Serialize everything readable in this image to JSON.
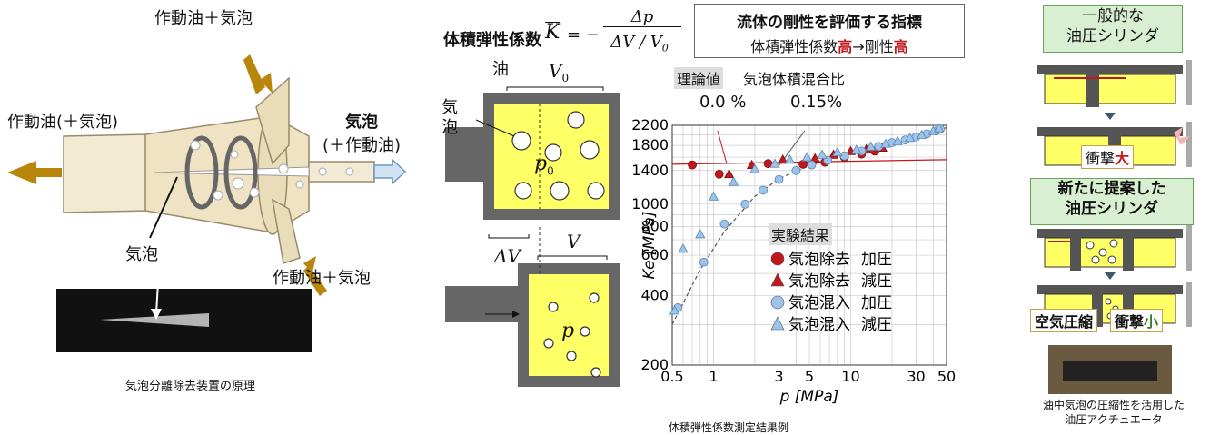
{
  "left": {
    "label_top": "作動油＋気泡",
    "label_left": "作動油(＋気泡)",
    "label_right_1": "気泡",
    "label_right_2": "(＋作動油)",
    "label_bubble": "気泡",
    "label_bottom": "作動油＋気泡",
    "caption": "気泡分離除去装置の原理"
  },
  "middle": {
    "formula_label": "体積弾性係数",
    "formula_lhs": "K",
    "formula_eq": "= −",
    "formula_num": "Δp",
    "formula_den": "ΔV / V",
    "formula_den_sub": "0",
    "callout_title": "流体の剛性を評価する指標",
    "callout_line_a": "体積弾性係数",
    "callout_high1": "高",
    "callout_arrow": "→剛性",
    "callout_high2": "高",
    "oil": "油",
    "bubble_a": "気",
    "bubble_b": "泡",
    "v0": "V",
    "v0_sub": "0",
    "p0": "p",
    "p0_sub": "0",
    "dv": "ΔV",
    "v": "V",
    "p": "p",
    "caption": "体積弾性係数測定結果例"
  },
  "chart_data": {
    "type": "scatter",
    "xlabel": "p [MPa]",
    "ylabel": "Ke [MPa]",
    "x_scale": "log",
    "y_scale": "log",
    "xlim": [
      0.5,
      50
    ],
    "ylim": [
      200,
      2200
    ],
    "x_ticks": [
      0.5,
      1,
      3,
      5,
      10,
      30,
      50
    ],
    "y_ticks": [
      200,
      400,
      600,
      800,
      1000,
      1400,
      1800,
      2200
    ],
    "grid": true,
    "theory_title": "理論値",
    "theory_sub": "気泡体積混合比",
    "theory_labels": [
      "0.0 %",
      "0.15%"
    ],
    "legend_title": "実験結果",
    "legend": [
      {
        "name": "気泡除去",
        "mode": "加圧",
        "marker": "circle",
        "color": "#c0181e"
      },
      {
        "name": "気泡除去",
        "mode": "減圧",
        "marker": "triangle",
        "color": "#c0181e"
      },
      {
        "name": "気泡混入",
        "mode": "加圧",
        "marker": "circle",
        "color": "#9cc3e8"
      },
      {
        "name": "気泡混入",
        "mode": "減圧",
        "marker": "triangle",
        "color": "#9cc3e8"
      }
    ],
    "series": [
      {
        "name": "気泡除去 加圧",
        "marker": "circle",
        "color": "#c0181e",
        "x": [
          0.7,
          1.1,
          2.5,
          4.5,
          6.5,
          9,
          12,
          15
        ],
        "y": [
          1480,
          1350,
          1500,
          1490,
          1520,
          1600,
          1650,
          1700
        ]
      },
      {
        "name": "気泡除去 減圧",
        "marker": "triangle",
        "color": "#c0181e",
        "x": [
          1.3,
          1.9,
          3.2,
          5.5,
          7.5,
          10,
          13,
          17
        ],
        "y": [
          1350,
          1480,
          1560,
          1580,
          1640,
          1700,
          1730,
          1760
        ]
      },
      {
        "name": "気泡混入 加圧",
        "marker": "circle",
        "color": "#9cc3e8",
        "x": [
          0.55,
          0.85,
          1.2,
          1.7,
          2.3,
          3.0,
          4.0,
          5.2,
          6.8,
          9,
          12,
          16,
          20,
          25,
          30,
          36,
          42,
          45
        ],
        "y": [
          355,
          560,
          820,
          1000,
          1150,
          1280,
          1400,
          1480,
          1550,
          1620,
          1700,
          1780,
          1850,
          1900,
          1960,
          2020,
          2080,
          2120
        ]
      },
      {
        "name": "気泡混入 減圧",
        "marker": "triangle",
        "color": "#9cc3e8",
        "x": [
          0.52,
          0.6,
          0.8,
          1.0,
          1.4,
          2.0,
          2.8,
          3.6,
          4.8,
          6.2,
          8,
          11,
          14,
          18,
          22,
          27,
          33,
          40,
          44
        ],
        "y": [
          345,
          640,
          740,
          1080,
          1250,
          1420,
          1500,
          1560,
          1600,
          1640,
          1680,
          1720,
          1780,
          1830,
          1880,
          1940,
          2000,
          2080,
          2140
        ]
      }
    ]
  },
  "right": {
    "box1_line1": "一般的な",
    "box1_line2": "油圧シリンダ",
    "impact1_pre": "衝撃",
    "impact1_em": "大",
    "box2_line1": "新たに提案した",
    "box2_line2": "油圧シリンダ",
    "air": "空気圧縮",
    "impact2_pre": "衝撃",
    "impact2_em": "小",
    "caption_1": "油中気泡の圧縮性を活用した",
    "caption_2": "油圧アクチュエータ"
  },
  "colors": {
    "yellow": "#ffff66",
    "gold": "#b8860b",
    "red": "#c0181e",
    "blue": "#9cc3e8",
    "green": "#3a7d2c"
  }
}
